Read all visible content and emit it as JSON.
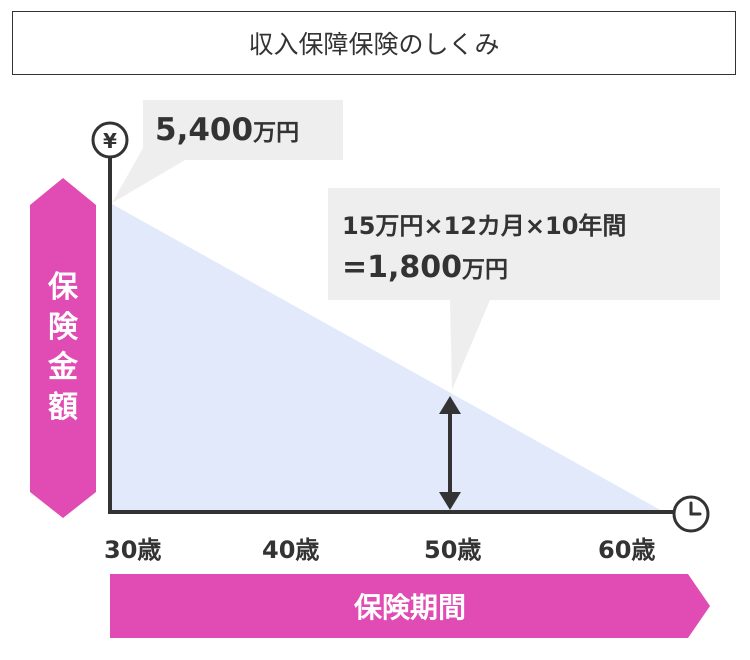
{
  "title": "収入保障保険のしくみ",
  "icons": {
    "yen_symbol": "¥",
    "y_axis_icon": "yen-circle-icon",
    "x_axis_icon": "clock-icon"
  },
  "callouts": {
    "max_amount_value": "5,400",
    "max_amount_unit": "万円",
    "calculation_formula": "15万円×12カ月×10年間",
    "calculation_value": "=1,800",
    "calculation_unit": "万円"
  },
  "x_axis": {
    "ticks": [
      "30歳",
      "40歳",
      "50歳",
      "60歳"
    ]
  },
  "labels": {
    "x_axis_label": "保険期間",
    "y_axis_label_chars": [
      "保",
      "険",
      "金",
      "額"
    ]
  },
  "colors": {
    "magenta": "#E04BB4",
    "area_fill": "#E1E9FB",
    "callout_bg": "#EEEEEE",
    "axis": "#333333"
  }
}
